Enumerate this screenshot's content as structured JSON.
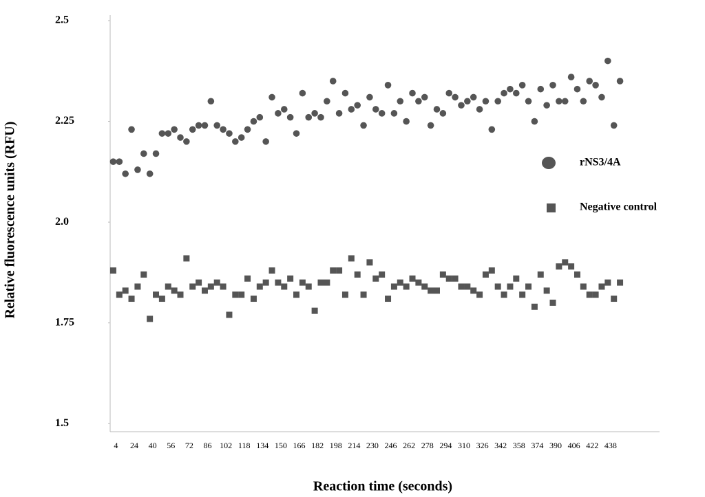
{
  "chart_data": {
    "type": "scatter",
    "x_label": "Reaction time (seconds)",
    "y_label": "Relative fluorescence units (RFU)",
    "categories": [
      "4",
      null,
      null,
      "24",
      null,
      null,
      "40",
      null,
      null,
      "56",
      null,
      null,
      "72",
      null,
      null,
      "86",
      null,
      null,
      "102",
      null,
      null,
      "118",
      null,
      null,
      "134",
      null,
      null,
      "150",
      null,
      null,
      "166",
      null,
      null,
      "182",
      null,
      null,
      "198",
      null,
      null,
      "214",
      null,
      null,
      "230",
      null,
      null,
      "246",
      null,
      null,
      "262",
      null,
      null,
      "278",
      null,
      null,
      "294",
      null,
      null,
      "310",
      null,
      null,
      "326",
      null,
      null,
      "342",
      null,
      null,
      "358",
      null,
      null,
      "374",
      null,
      null,
      "390",
      null,
      null,
      "406",
      null,
      null,
      "422",
      null,
      null,
      "438",
      null,
      null
    ],
    "series": [
      {
        "name": "rNS3/4A",
        "color": "#555555",
        "marker": "circle",
        "values": [
          2.15,
          2.15,
          2.12,
          2.23,
          2.13,
          2.17,
          2.12,
          2.17,
          2.22,
          2.22,
          2.23,
          2.21,
          2.2,
          2.23,
          2.24,
          2.24,
          2.3,
          2.24,
          2.23,
          2.22,
          2.2,
          2.21,
          2.23,
          2.25,
          2.26,
          2.2,
          2.31,
          2.27,
          2.28,
          2.26,
          2.22,
          2.32,
          2.26,
          2.27,
          2.26,
          2.3,
          2.35,
          2.27,
          2.32,
          2.28,
          2.29,
          2.24,
          2.31,
          2.28,
          2.27,
          2.34,
          2.27,
          2.3,
          2.25,
          2.32,
          2.3,
          2.31,
          2.24,
          2.28,
          2.27,
          2.32,
          2.31,
          2.29,
          2.3,
          2.31,
          2.28,
          2.3,
          2.23,
          2.3,
          2.32,
          2.33,
          2.32,
          2.34,
          2.3,
          2.25,
          2.33,
          2.29,
          2.34,
          2.3,
          2.3,
          2.36,
          2.33,
          2.3,
          2.35,
          2.34,
          2.31,
          2.4,
          2.24,
          2.35
        ]
      },
      {
        "name": "Negative control",
        "color": "#555555",
        "marker": "square",
        "values": [
          1.88,
          1.82,
          1.83,
          1.81,
          1.84,
          1.87,
          1.76,
          1.82,
          1.81,
          1.84,
          1.83,
          1.82,
          1.91,
          1.84,
          1.85,
          1.83,
          1.84,
          1.85,
          1.84,
          1.77,
          1.82,
          1.82,
          1.86,
          1.81,
          1.84,
          1.85,
          1.88,
          1.85,
          1.84,
          1.86,
          1.82,
          1.85,
          1.84,
          1.78,
          1.85,
          1.85,
          1.88,
          1.88,
          1.82,
          1.91,
          1.87,
          1.82,
          1.9,
          1.86,
          1.87,
          1.81,
          1.84,
          1.85,
          1.84,
          1.86,
          1.85,
          1.84,
          1.83,
          1.83,
          1.87,
          1.86,
          1.86,
          1.84,
          1.84,
          1.83,
          1.82,
          1.87,
          1.88,
          1.84,
          1.82,
          1.84,
          1.86,
          1.82,
          1.84,
          1.79,
          1.87,
          1.83,
          1.8,
          1.89,
          1.9,
          1.89,
          1.87,
          1.84,
          1.82,
          1.82,
          1.84,
          1.85,
          1.81,
          1.85
        ]
      }
    ],
    "ylim": [
      1.48,
      2.5
    ],
    "yticks": [
      1.5,
      1.75,
      {
        "value": 2,
        "label": "2.0"
      },
      2.25,
      2.5
    ],
    "grid": false,
    "legend": "right"
  }
}
